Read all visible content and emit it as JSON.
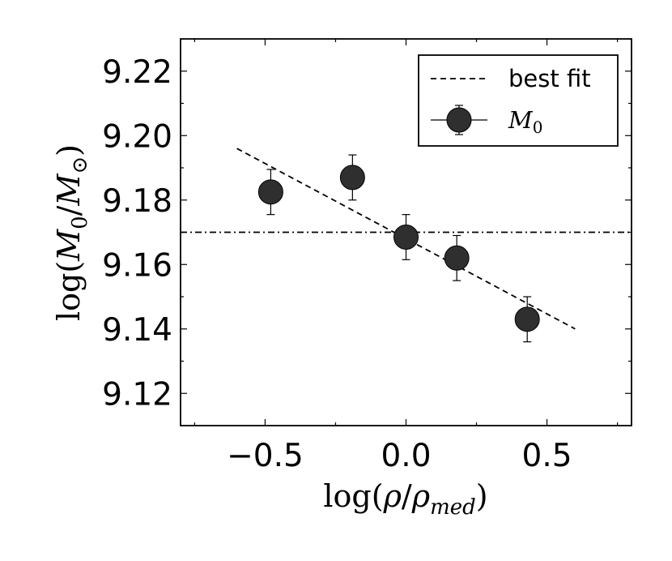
{
  "chart_data": {
    "type": "scatter",
    "title": "",
    "xlabel": {
      "prefix": "log(",
      "rho": "ρ",
      "slash": "/",
      "rho2": "ρ",
      "subscript": "med",
      "suffix": ")"
    },
    "ylabel": {
      "prefix": "log(",
      "m": "M",
      "sub0": "0",
      "slash": "/",
      "m2": "M",
      "sun": "⊙",
      "suffix": ")"
    },
    "xlim": [
      -0.8,
      0.8
    ],
    "ylim": [
      9.11,
      9.23
    ],
    "xticks": [
      -0.5,
      0.0,
      0.5
    ],
    "xtick_labels": [
      "−0.5",
      "0.0",
      "0.5"
    ],
    "yticks": [
      9.12,
      9.14,
      9.16,
      9.18,
      9.2,
      9.22
    ],
    "ytick_labels": [
      "9.12",
      "9.14",
      "9.16",
      "9.18",
      "9.20",
      "9.22"
    ],
    "grid": false,
    "legend_position": "top-right",
    "series": [
      {
        "name": "M0",
        "legend_symbol": "M",
        "legend_subscript": "0",
        "marker": "circle",
        "color": "#2f2f2f",
        "x": [
          -0.48,
          -0.19,
          0.0,
          0.18,
          0.43
        ],
        "y": [
          9.1825,
          9.187,
          9.1685,
          9.162,
          9.143
        ],
        "yerr": [
          0.007,
          0.007,
          0.007,
          0.007,
          0.007
        ]
      }
    ],
    "best_fit": {
      "name": "best fit",
      "style": "dashed",
      "color": "#000000",
      "x": [
        -0.6,
        0.6
      ],
      "y": [
        9.196,
        9.14
      ]
    },
    "reference_line": {
      "style": "dashdot",
      "color": "#000000",
      "y": 9.17
    }
  }
}
